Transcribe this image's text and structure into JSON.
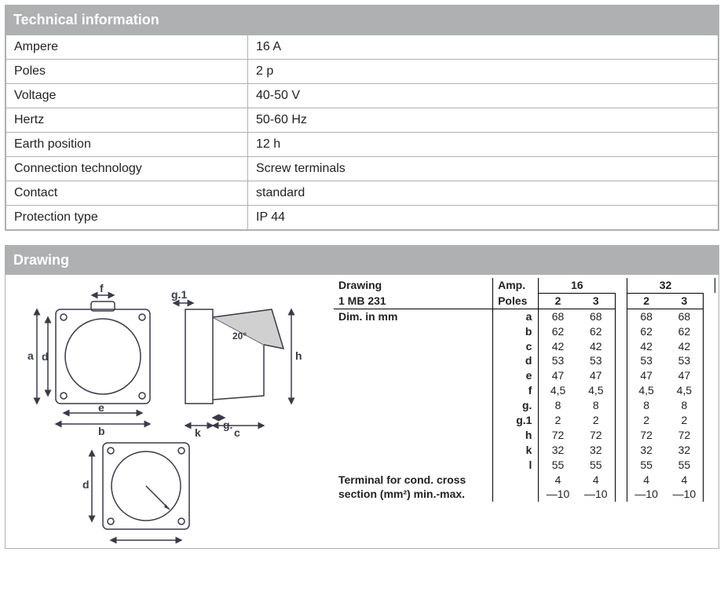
{
  "tech": {
    "title": "Technical information",
    "rows": [
      {
        "k": "Ampere",
        "v": "16 A"
      },
      {
        "k": "Poles",
        "v": "2 p"
      },
      {
        "k": "Voltage",
        "v": "40-50 V"
      },
      {
        "k": "Hertz",
        "v": "50-60 Hz"
      },
      {
        "k": "Earth position",
        "v": "12 h"
      },
      {
        "k": "Connection technology",
        "v": "Screw terminals"
      },
      {
        "k": "Contact",
        "v": "standard"
      },
      {
        "k": "Protection type",
        "v": "IP 44"
      }
    ]
  },
  "drawing": {
    "title": "Drawing",
    "header": {
      "name": "Drawing",
      "model": "1 MB 231",
      "amp": "Amp.",
      "poles": "Poles",
      "amp_values": [
        "16",
        "32"
      ],
      "pole_values": [
        "2",
        "3",
        "2",
        "3"
      ],
      "dim_label": "Dim. in mm"
    },
    "dims": [
      {
        "l": "a",
        "v": [
          "68",
          "68",
          "68",
          "68"
        ]
      },
      {
        "l": "b",
        "v": [
          "62",
          "62",
          "62",
          "62"
        ]
      },
      {
        "l": "c",
        "v": [
          "42",
          "42",
          "42",
          "42"
        ]
      },
      {
        "l": "d",
        "v": [
          "53",
          "53",
          "53",
          "53"
        ]
      },
      {
        "l": "e",
        "v": [
          "47",
          "47",
          "47",
          "47"
        ]
      },
      {
        "l": "f",
        "v": [
          "4,5",
          "4,5",
          "4,5",
          "4,5"
        ]
      },
      {
        "l": "g.",
        "v": [
          "8",
          "8",
          "8",
          "8"
        ]
      },
      {
        "l": "g.1",
        "v": [
          "2",
          "2",
          "2",
          "2"
        ]
      },
      {
        "l": "h",
        "v": [
          "72",
          "72",
          "72",
          "72"
        ]
      },
      {
        "l": "k",
        "v": [
          "32",
          "32",
          "32",
          "32"
        ]
      },
      {
        "l": "l",
        "v": [
          "55",
          "55",
          "55",
          "55"
        ]
      }
    ],
    "terminal_label1": "Terminal for cond. cross",
    "terminal_label2": "section (mm²) min.-max.",
    "terminal_max": [
      "4",
      "4",
      "4",
      "4"
    ],
    "terminal_min": [
      "—10",
      "—10",
      "—10",
      "—10"
    ]
  },
  "svg_labels": {
    "f": "f",
    "g1": "g.1",
    "a": "a",
    "d": "d",
    "b": "b",
    "e": "e",
    "k": "k",
    "c": "c",
    "h": "h",
    "g": "g.",
    "deg": "20°"
  },
  "colors": {
    "header_bg": "#aeb0b1",
    "header_fg": "#ffffff",
    "border": "#aeb0b1",
    "text": "#222222"
  }
}
